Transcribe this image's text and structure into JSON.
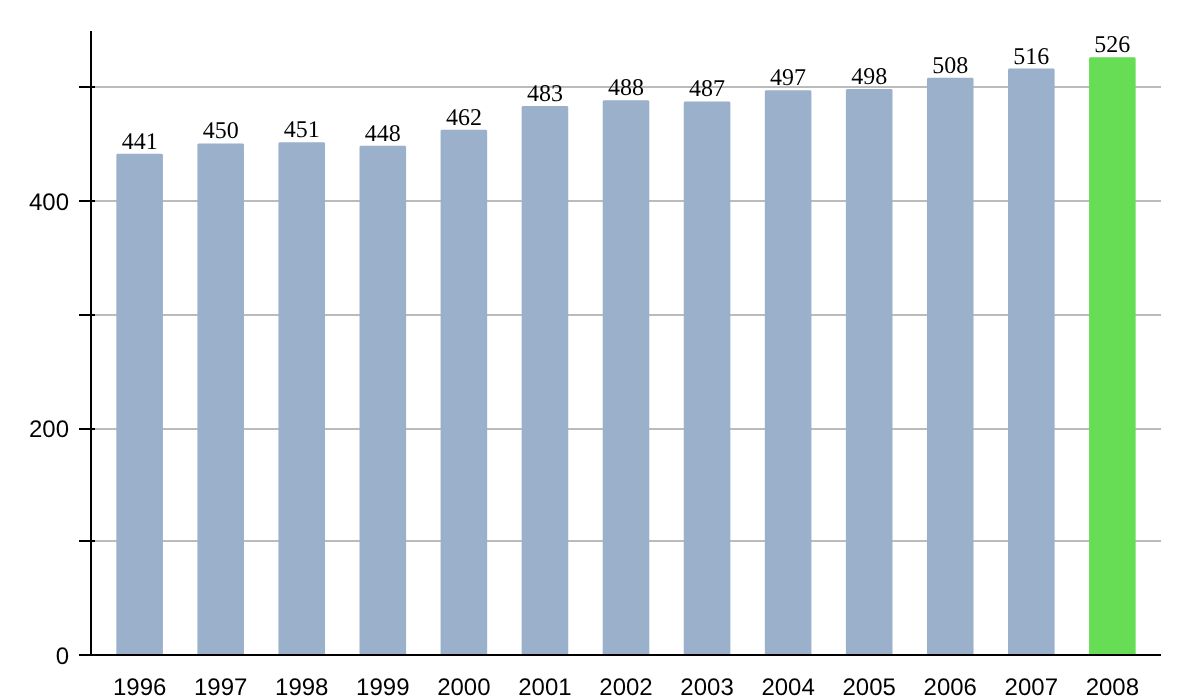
{
  "chart_data": {
    "type": "bar",
    "categories": [
      "1996",
      "1997",
      "1998",
      "1999",
      "2000",
      "2001",
      "2002",
      "2003",
      "2004",
      "2005",
      "2006",
      "2007",
      "2008"
    ],
    "values": [
      441,
      450,
      451,
      448,
      462,
      483,
      488,
      487,
      497,
      498,
      508,
      516,
      526
    ],
    "colors": [
      "#9ab0cb",
      "#9ab0cb",
      "#9ab0cb",
      "#9ab0cb",
      "#9ab0cb",
      "#9ab0cb",
      "#9ab0cb",
      "#9ab0cb",
      "#9ab0cb",
      "#9ab0cb",
      "#9ab0cb",
      "#9ab0cb",
      "#66dd55"
    ],
    "ylim": [
      0,
      550
    ],
    "yticks": [
      0,
      {
        "value": 100,
        "label": null
      },
      200,
      {
        "value": 300,
        "label": null
      },
      400,
      {
        "value": 500,
        "label": null
      }
    ],
    "grid": "y",
    "data_labels": true
  }
}
